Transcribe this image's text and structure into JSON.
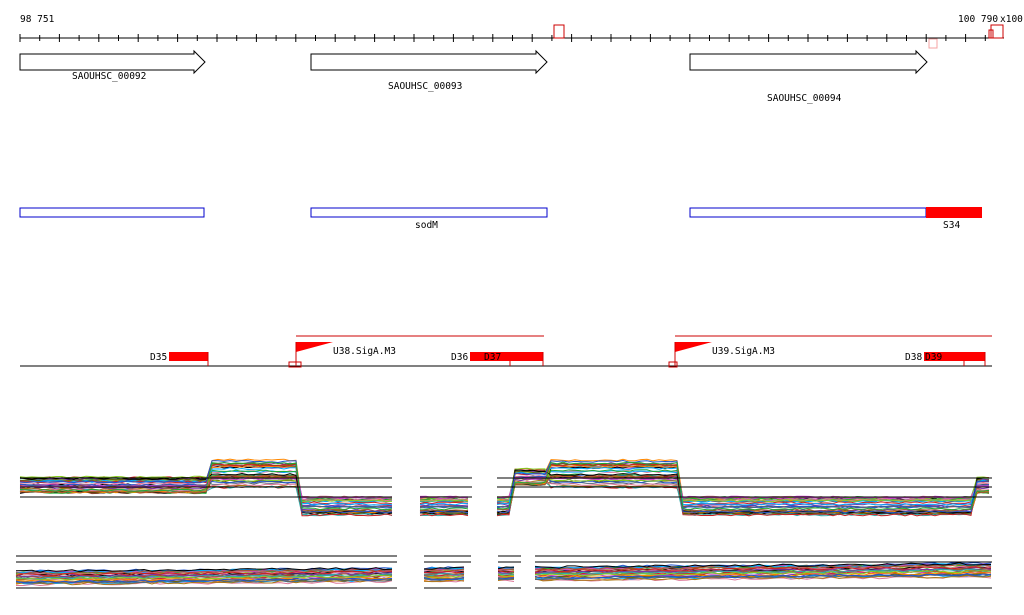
{
  "ruler": {
    "start_label": "98 751",
    "end_label": "100 790",
    "end_extra_label": "x100"
  },
  "genes": [
    {
      "id": "SAOUHSC_00092",
      "label": "SAOUHSC_00092"
    },
    {
      "id": "SAOUHSC_00093",
      "label": "SAOUHSC_00093"
    },
    {
      "id": "SAOUHSC_00094",
      "label": "SAOUHSC_00094"
    }
  ],
  "annotations": [
    {
      "label": ""
    },
    {
      "label": "sodM"
    },
    {
      "label": "S34"
    }
  ],
  "regions": {
    "downstream": [
      "D35",
      "D36",
      "D37",
      "D38",
      "D39"
    ],
    "promoters": [
      "U38.SigA.M3",
      "U39.SigA.M3"
    ]
  },
  "colors": {
    "axis": "#000000",
    "gene_outline": "#000000",
    "annotation_outline": "#0000cc",
    "feature_fill": "#ff0000",
    "promoter_line": "#cc0000",
    "small_marker": "#f4a3a3"
  },
  "expression": {
    "panel_count": 2,
    "trace_palette": [
      "#000000",
      "#cc2222",
      "#2255cc",
      "#22aa33",
      "#aa7711",
      "#7733aa",
      "#33aaaa",
      "#dd7799",
      "#666600",
      "#ff8800",
      "#556677",
      "#88cc22",
      "#cc44cc",
      "#00aaff",
      "#aa5533"
    ]
  }
}
